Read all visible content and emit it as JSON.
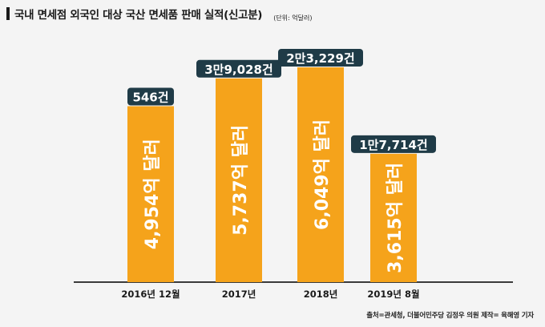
{
  "chart_data": {
    "type": "bar",
    "title": "국내 면세점 외국인 대상 국산 면세품 판매 실적(신고분)",
    "unit": "(단위: 억달러)",
    "categories": [
      "2016년 12월",
      "2017년",
      "2018년",
      "2019년 8월"
    ],
    "values": [
      4954,
      5737,
      6049,
      3615
    ],
    "value_labels": [
      "4,954억 달러",
      "5,737억 달러",
      "6,049억 달러",
      "3,615억 달러"
    ],
    "count_labels": [
      "546건",
      "3만9,028건",
      "2만3,229건",
      "1만7,714건"
    ],
    "ylim": [
      0,
      6500
    ],
    "grid": false,
    "colors": {
      "bar": "#f5a31b",
      "badge": "#1f3b47",
      "badge_text": "#ffffff",
      "axis": "#3a3a3a"
    }
  },
  "source": "출처=관세청, 더불어민주당 김정우 의원   제작= 육해영 기자"
}
